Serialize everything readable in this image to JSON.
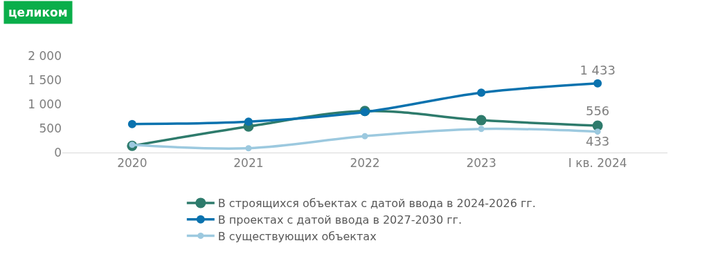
{
  "chart_data": {
    "type": "line",
    "categories": [
      "2020",
      "2021",
      "2022",
      "2023",
      "I кв. 2024"
    ],
    "series": [
      {
        "name": "В строящихся объектах с датой ввода в 2024-2026 гг.",
        "color": "#2e7b6c",
        "values": [
          140,
          540,
          860,
          670,
          556
        ],
        "value_labels": [
          null,
          null,
          null,
          null,
          "556"
        ]
      },
      {
        "name": "В проектах с датой ввода в 2027-2030 гг.",
        "color": "#0a72ae",
        "values": [
          590,
          640,
          840,
          1240,
          1433
        ],
        "value_labels": [
          null,
          null,
          null,
          null,
          "1 433"
        ]
      },
      {
        "name": "В существующих объектах",
        "color": "#9cc9df",
        "values": [
          160,
          90,
          340,
          490,
          433
        ],
        "value_labels": [
          null,
          null,
          null,
          null,
          "433"
        ]
      }
    ],
    "ylim": [
      0,
      2000
    ],
    "yticks": [
      {
        "value": 0,
        "label": "0"
      },
      {
        "value": 500,
        "label": "500"
      },
      {
        "value": 1000,
        "label": "1 000"
      },
      {
        "value": 1500,
        "label": "1 500"
      },
      {
        "value": 2000,
        "label": "2 000"
      }
    ],
    "annotations": [
      "целиком"
    ],
    "legend": "bottom",
    "marker": "circle",
    "line_style": "solid"
  }
}
